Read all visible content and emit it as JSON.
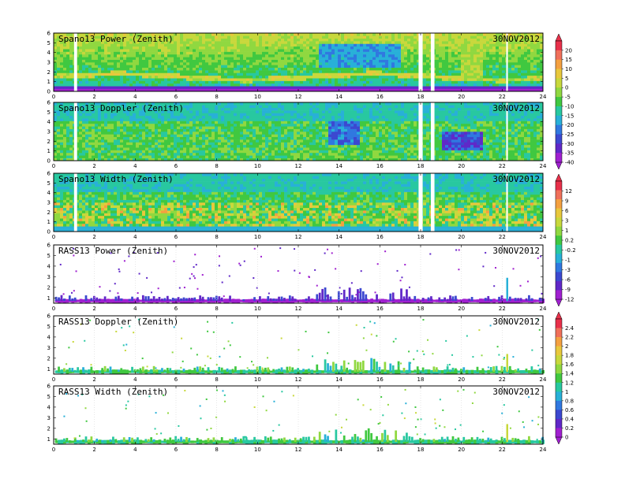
{
  "chart_data": [
    {
      "type": "heatmap",
      "title": "Spano13 Power (Zenith)",
      "date": "30NOV2012",
      "x_ticks": [
        "0",
        "2",
        "4",
        "6",
        "8",
        "10",
        "12",
        "14",
        "16",
        "18",
        "20",
        "22",
        "24"
      ],
      "y_ticks": [
        "0",
        "1",
        "2",
        "3",
        "4",
        "5",
        "6"
      ],
      "xlim": [
        0,
        24
      ],
      "ylim": [
        0,
        6
      ],
      "colorbar": "scale1",
      "pattern": "power"
    },
    {
      "type": "heatmap",
      "title": "Spano13 Doppler (Zenith)",
      "date": "30NOV2012",
      "x_ticks": [
        "0",
        "2",
        "4",
        "6",
        "8",
        "10",
        "12",
        "14",
        "16",
        "18",
        "20",
        "22",
        "24"
      ],
      "y_ticks": [
        "0",
        "1",
        "2",
        "3",
        "4",
        "5",
        "6"
      ],
      "xlim": [
        0,
        24
      ],
      "ylim": [
        0,
        6
      ],
      "colorbar": "scale1",
      "pattern": "doppler"
    },
    {
      "type": "heatmap",
      "title": "Spano13 Width (Zenith)",
      "date": "30NOV2012",
      "x_ticks": [
        "0",
        "2",
        "4",
        "6",
        "8",
        "10",
        "12",
        "14",
        "16",
        "18",
        "20",
        "22",
        "24"
      ],
      "y_ticks": [
        "0",
        "1",
        "2",
        "3",
        "4",
        "5",
        "6"
      ],
      "xlim": [
        0,
        24
      ],
      "ylim": [
        0,
        6
      ],
      "colorbar": "scale2",
      "pattern": "width"
    },
    {
      "type": "heatmap",
      "title": "RASS13 Power (Zenith)",
      "date": "30NOV2012",
      "x_ticks": [
        "0",
        "2",
        "4",
        "6",
        "8",
        "10",
        "12",
        "14",
        "16",
        "18",
        "20",
        "22",
        "24"
      ],
      "y_ticks": [
        "1",
        "2",
        "3",
        "4",
        "5",
        "6"
      ],
      "xlim": [
        0,
        24
      ],
      "ylim": [
        0.5,
        6
      ],
      "colorbar": "scale2",
      "pattern": "rass_power"
    },
    {
      "type": "heatmap",
      "title": "RASS13 Doppler (Zenith)",
      "date": "30NOV2012",
      "x_ticks": [
        "0",
        "2",
        "4",
        "6",
        "8",
        "10",
        "12",
        "14",
        "16",
        "18",
        "20",
        "22",
        "24"
      ],
      "y_ticks": [
        "1",
        "2",
        "3",
        "4",
        "5",
        "6"
      ],
      "xlim": [
        0,
        24
      ],
      "ylim": [
        0.5,
        6
      ],
      "colorbar": "scale3",
      "pattern": "rass"
    },
    {
      "type": "heatmap",
      "title": "RASS13 Width (Zenith)",
      "date": "30NOV2012",
      "x_ticks": [
        "0",
        "2",
        "4",
        "6",
        "8",
        "10",
        "12",
        "14",
        "16",
        "18",
        "20",
        "22",
        "24"
      ],
      "y_ticks": [
        "1",
        "2",
        "3",
        "4",
        "5",
        "6"
      ],
      "xlim": [
        0,
        24
      ],
      "ylim": [
        0.5,
        6
      ],
      "colorbar": "scale3",
      "pattern": "rass"
    }
  ],
  "colorbars": {
    "scale1": {
      "labels": [
        "20",
        "15",
        "10",
        "5",
        "0",
        "-5",
        "-10",
        "-15",
        "-20",
        "-25",
        "-30",
        "-35",
        "-40"
      ],
      "colors": [
        "#e8304a",
        "#f0705a",
        "#f4a040",
        "#e8c83c",
        "#c8d83c",
        "#90d840",
        "#40c840",
        "#28c8a0",
        "#28b0d8",
        "#3078e0",
        "#3c48d0",
        "#6028c8",
        "#a020d0"
      ]
    },
    "scale2": {
      "labels": [
        "12",
        "9",
        "6",
        "3",
        "1",
        "0.2",
        "-0.2",
        "-1",
        "-3",
        "-6",
        "-9",
        "-12"
      ],
      "colors": [
        "#e8304a",
        "#f0705a",
        "#f4a040",
        "#e8c83c",
        "#c8d83c",
        "#90d840",
        "#40c840",
        "#28c8a0",
        "#28b0d8",
        "#3078e0",
        "#3c48d0",
        "#6028c8",
        "#a020d0"
      ]
    },
    "scale3": {
      "labels": [
        "2.4",
        "2.2",
        "2",
        "1.8",
        "1.6",
        "1.4",
        "1.2",
        "1",
        "0.8",
        "0.6",
        "0.4",
        "0.2",
        "0"
      ],
      "colors": [
        "#e8304a",
        "#f0705a",
        "#f4a040",
        "#e8c83c",
        "#c8d83c",
        "#90d840",
        "#40c840",
        "#28c8a0",
        "#28b0d8",
        "#3078e0",
        "#3c48d0",
        "#6028c8",
        "#a020d0"
      ]
    }
  }
}
